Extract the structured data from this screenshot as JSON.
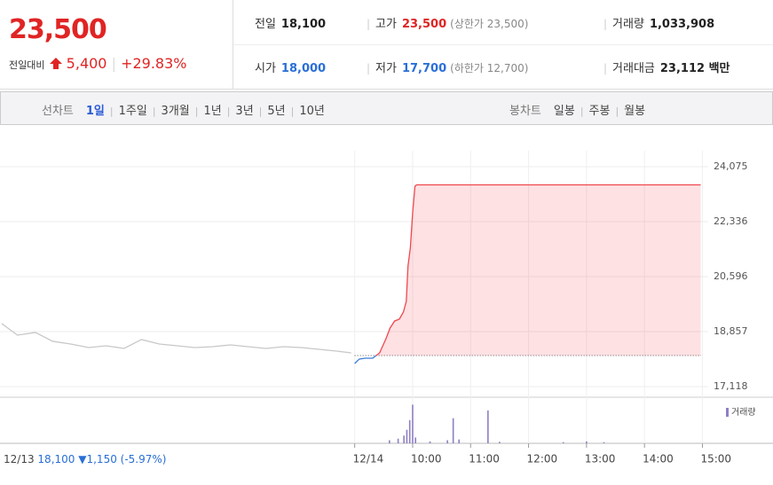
{
  "header": {
    "price": "23,500",
    "change_label": "전일대비",
    "change": "5,400",
    "change_pct": "+29.83%",
    "stats": [
      [
        {
          "label": "전일",
          "value": "18,100"
        },
        {
          "label": "고가",
          "value": "23,500",
          "note": "(상한가 23,500)"
        },
        {
          "label": "거래량",
          "value": "1,033,908"
        }
      ],
      [
        {
          "label": "시가",
          "value": "18,000"
        },
        {
          "label": "저가",
          "value": "17,700",
          "note": "(하한가 12,700)"
        },
        {
          "label": "거래대금",
          "value": "23,112 백만"
        }
      ]
    ]
  },
  "tabs": {
    "line_label": "선차트",
    "line_periods": [
      "1일",
      "1주일",
      "3개월",
      "1년",
      "3년",
      "5년",
      "10년"
    ],
    "candle_label": "봉차트",
    "candle_periods": [
      "일봉",
      "주봉",
      "월봉"
    ]
  },
  "chart_data": {
    "type": "line",
    "xlim": [
      2.88,
      15.1
    ],
    "ylim": [
      16780,
      24580
    ],
    "yticks": [
      {
        "value": 24075,
        "label": "24,075"
      },
      {
        "value": 22336,
        "label": "22,336"
      },
      {
        "value": 20596,
        "label": "20,596"
      },
      {
        "value": 18857,
        "label": "18,857"
      },
      {
        "value": 17118,
        "label": "17,118"
      }
    ],
    "xticks": [
      {
        "value": 9,
        "label": "12/14"
      },
      {
        "value": 10,
        "label": "10:00"
      },
      {
        "value": 11,
        "label": "11:00"
      },
      {
        "value": 12,
        "label": "12:00"
      },
      {
        "value": 13,
        "label": "13:00"
      },
      {
        "value": 14,
        "label": "14:00"
      },
      {
        "value": 15,
        "label": "15:00"
      }
    ],
    "grid": true,
    "reference_line": 18100,
    "series": [
      {
        "color": "#c8c8c8",
        "x": [
          2.91,
          3.18,
          3.49,
          3.79,
          4.1,
          4.41,
          4.71,
          5.02,
          5.32,
          5.63,
          5.94,
          6.24,
          6.55,
          6.86,
          7.16,
          7.47,
          7.77,
          8.08,
          8.39,
          8.69,
          8.94
        ],
        "values": [
          19110,
          18745,
          18829,
          18549,
          18464,
          18352,
          18408,
          18324,
          18605,
          18464,
          18408,
          18352,
          18380,
          18436,
          18380,
          18324,
          18380,
          18352,
          18296,
          18240,
          18184
        ]
      },
      {
        "color": "#f0474f",
        "below_color": "#3a7bd5",
        "x": [
          9.0,
          9.08,
          9.18,
          9.31,
          9.43,
          9.54,
          9.61,
          9.69,
          9.77,
          9.84,
          9.89,
          9.92,
          9.96,
          10.0,
          10.04,
          10.07,
          14.97
        ],
        "values": [
          17847,
          17988,
          18015,
          18015,
          18184,
          18633,
          18969,
          19194,
          19250,
          19474,
          19811,
          20933,
          21494,
          22616,
          23457,
          23500,
          23500
        ]
      }
    ],
    "volume": {
      "name": "거래량",
      "color": "#8f7fc4",
      "vlim": [
        0,
        110000
      ],
      "x": [
        9.6,
        9.75,
        9.85,
        9.9,
        9.95,
        10.0,
        10.05,
        10.3,
        10.6,
        10.7,
        10.8,
        11.3,
        11.5,
        12.6,
        13.0,
        13.3
      ],
      "values": [
        8000,
        12000,
        20000,
        35000,
        60000,
        100000,
        15000,
        5000,
        8000,
        65000,
        10000,
        85000,
        4000,
        3000,
        5000,
        3000
      ]
    },
    "prev_day": {
      "date": "12/13",
      "close": "18,100",
      "change": "▼1,150 (-5.97%)"
    }
  }
}
